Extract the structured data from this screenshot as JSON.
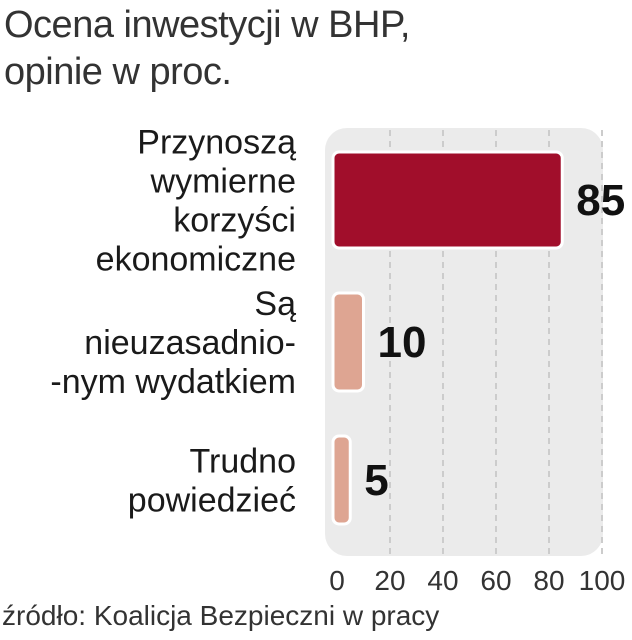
{
  "title": {
    "line1": "Ocena inwestycji w BHP,",
    "line2": "opinie w proc."
  },
  "source": "źródło: Koalicja Bezpieczni w pracy",
  "chart_data": {
    "type": "bar",
    "orientation": "horizontal",
    "categories": [
      [
        "Przynoszą",
        "wymierne",
        "korzyści",
        "ekonomiczne"
      ],
      [
        "Są",
        "nieuzasadnio-",
        "-nym wydatkiem"
      ],
      [
        "Trudno",
        "powiedzieć"
      ]
    ],
    "values": [
      85,
      10,
      5
    ],
    "value_labels": [
      "85",
      "10",
      "5"
    ],
    "bar_colors": [
      "#a10e2b",
      "#dea592",
      "#dea592"
    ],
    "xlim": [
      0,
      100
    ],
    "xticks": [
      "0",
      "20",
      "40",
      "60",
      "80",
      "100"
    ],
    "tick_values": [
      0,
      20,
      40,
      60,
      80,
      100
    ],
    "grid": true
  }
}
